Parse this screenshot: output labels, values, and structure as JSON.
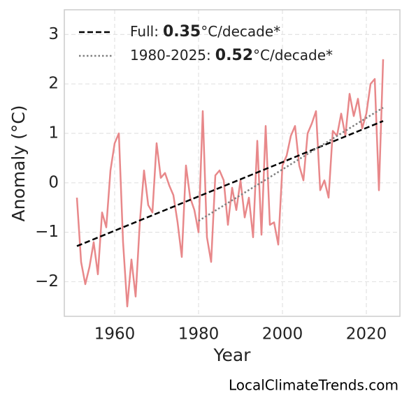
{
  "chart_data": {
    "type": "line",
    "xlabel": "Year",
    "ylabel": "Anomaly (°C)",
    "source": "LocalClimateTrends.com",
    "xlim": [
      1948,
      2028
    ],
    "ylim": [
      -2.7,
      3.5
    ],
    "xticks": [
      1960,
      1980,
      2000,
      2020
    ],
    "yticks": [
      {
        "value": -2,
        "label": "−2"
      },
      {
        "value": -1,
        "label": "−1"
      },
      0,
      1,
      2,
      3
    ],
    "grid": true,
    "legend": "upper left",
    "series": [
      {
        "color": "#e8888a",
        "x": [
          1951,
          1952,
          1953,
          1954,
          1955,
          1956,
          1957,
          1958,
          1959,
          1960,
          1961,
          1962,
          1963,
          1964,
          1965,
          1966,
          1967,
          1968,
          1969,
          1970,
          1971,
          1972,
          1973,
          1974,
          1975,
          1976,
          1977,
          1978,
          1979,
          1980,
          1981,
          1982,
          1983,
          1984,
          1985,
          1986,
          1987,
          1988,
          1989,
          1990,
          1991,
          1992,
          1993,
          1994,
          1995,
          1996,
          1997,
          1998,
          1999,
          2000,
          2001,
          2002,
          2003,
          2004,
          2005,
          2006,
          2007,
          2008,
          2009,
          2010,
          2011,
          2012,
          2013,
          2014,
          2015,
          2016,
          2017,
          2018,
          2019,
          2020,
          2021,
          2022,
          2023,
          2024
        ],
        "values": [
          -0.3,
          -1.6,
          -2.05,
          -1.7,
          -1.2,
          -1.85,
          -0.6,
          -0.9,
          0.25,
          0.8,
          1.0,
          -1.2,
          -2.5,
          -1.55,
          -2.3,
          -0.8,
          0.25,
          -0.45,
          -0.6,
          0.8,
          0.1,
          0.2,
          -0.05,
          -0.25,
          -0.8,
          -1.5,
          0.35,
          -0.3,
          -0.55,
          -1.0,
          1.45,
          -1.1,
          -1.6,
          0.15,
          0.25,
          0.05,
          -0.85,
          -0.1,
          -0.55,
          0.05,
          -0.7,
          -0.3,
          -1.1,
          0.85,
          -1.05,
          1.15,
          -0.85,
          -0.8,
          -1.25,
          0.35,
          0.55,
          0.95,
          1.15,
          0.35,
          0.05,
          1.0,
          1.2,
          1.45,
          -0.15,
          0.05,
          -0.3,
          1.05,
          0.95,
          1.4,
          0.95,
          1.8,
          1.35,
          1.7,
          1.1,
          1.4,
          2.0,
          2.1,
          -0.15,
          2.5
        ]
      }
    ],
    "trends": [
      {
        "label": "Full:",
        "slope": 0.35,
        "unit": "°C/decade*",
        "color": "#000000",
        "style": "dashed",
        "x": [
          1951,
          2024
        ],
        "values": [
          -1.28,
          1.25
        ]
      },
      {
        "label": "1980-2025:",
        "slope": 0.52,
        "unit": "°C/decade*",
        "color": "#808080",
        "style": "dotted",
        "x": [
          1980,
          2024
        ],
        "values": [
          -0.77,
          1.52
        ]
      }
    ]
  }
}
